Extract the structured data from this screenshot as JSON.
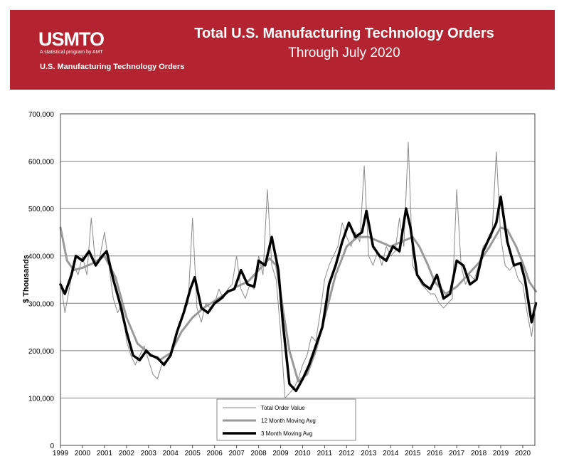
{
  "header": {
    "logo_text": "USMTO",
    "tagline": "A statistical program by AMT",
    "subtag": "U.S. Manufacturing Technology Orders",
    "title": "Total U.S. Manufacturing Technology Orders",
    "subtitle": "Through July 2020"
  },
  "colors": {
    "banner": "#b32430",
    "total": "#8a8a8a",
    "ma12": "#9a9a9a",
    "ma3": "#000000"
  },
  "chart_data": {
    "type": "line",
    "title": "Total U.S. Manufacturing Technology Orders",
    "subtitle": "Through July 2020",
    "xlabel": "",
    "ylabel": "$ Thousands",
    "ylim": [
      0,
      700000
    ],
    "grid": true,
    "legend_position": "bottom-center",
    "x_ticks": [
      "1999",
      "2000",
      "2001",
      "2002",
      "2003",
      "2004",
      "2005",
      "2006",
      "2007",
      "2008",
      "2009",
      "2010",
      "2011",
      "2012",
      "2013",
      "2014",
      "2015",
      "2016",
      "2017",
      "2018",
      "2019",
      "2020"
    ],
    "y_ticks": [
      "0",
      "100,000",
      "200,000",
      "300,000",
      "400,000",
      "500,000",
      "600,000",
      "700,000"
    ],
    "series": [
      {
        "name": "Total Order Value",
        "style": "thin",
        "points": [
          [
            1999.0,
            350000
          ],
          [
            1999.2,
            280000
          ],
          [
            1999.4,
            330000
          ],
          [
            1999.6,
            380000
          ],
          [
            1999.8,
            360000
          ],
          [
            2000.0,
            400000
          ],
          [
            2000.2,
            360000
          ],
          [
            2000.4,
            480000
          ],
          [
            2000.6,
            380000
          ],
          [
            2000.8,
            400000
          ],
          [
            2001.0,
            450000
          ],
          [
            2001.2,
            380000
          ],
          [
            2001.4,
            310000
          ],
          [
            2001.6,
            280000
          ],
          [
            2001.8,
            300000
          ],
          [
            2002.0,
            220000
          ],
          [
            2002.2,
            190000
          ],
          [
            2002.4,
            170000
          ],
          [
            2002.6,
            190000
          ],
          [
            2002.8,
            210000
          ],
          [
            2003.0,
            180000
          ],
          [
            2003.2,
            150000
          ],
          [
            2003.4,
            140000
          ],
          [
            2003.6,
            170000
          ],
          [
            2003.8,
            180000
          ],
          [
            2004.0,
            190000
          ],
          [
            2004.2,
            230000
          ],
          [
            2004.4,
            260000
          ],
          [
            2004.6,
            280000
          ],
          [
            2004.8,
            300000
          ],
          [
            2005.0,
            480000
          ],
          [
            2005.2,
            290000
          ],
          [
            2005.4,
            260000
          ],
          [
            2005.6,
            300000
          ],
          [
            2005.8,
            290000
          ],
          [
            2006.0,
            300000
          ],
          [
            2006.2,
            330000
          ],
          [
            2006.4,
            310000
          ],
          [
            2006.6,
            330000
          ],
          [
            2006.8,
            340000
          ],
          [
            2007.0,
            400000
          ],
          [
            2007.2,
            330000
          ],
          [
            2007.4,
            310000
          ],
          [
            2007.6,
            340000
          ],
          [
            2007.8,
            330000
          ],
          [
            2008.0,
            400000
          ],
          [
            2008.2,
            360000
          ],
          [
            2008.4,
            540000
          ],
          [
            2008.6,
            380000
          ],
          [
            2008.8,
            350000
          ],
          [
            2009.0,
            240000
          ],
          [
            2009.2,
            100000
          ],
          [
            2009.4,
            110000
          ],
          [
            2009.6,
            120000
          ],
          [
            2009.8,
            140000
          ],
          [
            2010.0,
            170000
          ],
          [
            2010.2,
            190000
          ],
          [
            2010.4,
            230000
          ],
          [
            2010.6,
            220000
          ],
          [
            2010.8,
            280000
          ],
          [
            2011.0,
            350000
          ],
          [
            2011.2,
            380000
          ],
          [
            2011.4,
            400000
          ],
          [
            2011.6,
            420000
          ],
          [
            2011.8,
            470000
          ],
          [
            2012.0,
            440000
          ],
          [
            2012.2,
            420000
          ],
          [
            2012.4,
            450000
          ],
          [
            2012.6,
            430000
          ],
          [
            2012.8,
            590000
          ],
          [
            2013.0,
            400000
          ],
          [
            2013.2,
            380000
          ],
          [
            2013.4,
            410000
          ],
          [
            2013.6,
            380000
          ],
          [
            2013.8,
            420000
          ],
          [
            2014.0,
            400000
          ],
          [
            2014.2,
            410000
          ],
          [
            2014.4,
            480000
          ],
          [
            2014.6,
            420000
          ],
          [
            2014.8,
            640000
          ],
          [
            2015.0,
            380000
          ],
          [
            2015.2,
            360000
          ],
          [
            2015.4,
            340000
          ],
          [
            2015.6,
            330000
          ],
          [
            2015.8,
            320000
          ],
          [
            2016.0,
            320000
          ],
          [
            2016.2,
            300000
          ],
          [
            2016.4,
            290000
          ],
          [
            2016.6,
            300000
          ],
          [
            2016.8,
            310000
          ],
          [
            2017.0,
            540000
          ],
          [
            2017.2,
            380000
          ],
          [
            2017.4,
            340000
          ],
          [
            2017.6,
            360000
          ],
          [
            2017.8,
            350000
          ],
          [
            2018.0,
            380000
          ],
          [
            2018.2,
            420000
          ],
          [
            2018.4,
            430000
          ],
          [
            2018.6,
            440000
          ],
          [
            2018.8,
            620000
          ],
          [
            2019.0,
            440000
          ],
          [
            2019.2,
            380000
          ],
          [
            2019.4,
            370000
          ],
          [
            2019.6,
            380000
          ],
          [
            2019.8,
            350000
          ],
          [
            2020.0,
            340000
          ],
          [
            2020.2,
            280000
          ],
          [
            2020.4,
            230000
          ],
          [
            2020.6,
            300000
          ]
        ]
      },
      {
        "name": "12 Month Moving Avg",
        "style": "medium",
        "points": [
          [
            1999.0,
            460000
          ],
          [
            1999.3,
            390000
          ],
          [
            1999.6,
            370000
          ],
          [
            2000.0,
            375000
          ],
          [
            2000.5,
            385000
          ],
          [
            2001.0,
            400000
          ],
          [
            2001.5,
            355000
          ],
          [
            2002.0,
            270000
          ],
          [
            2002.5,
            215000
          ],
          [
            2003.0,
            195000
          ],
          [
            2003.5,
            180000
          ],
          [
            2004.0,
            195000
          ],
          [
            2004.5,
            240000
          ],
          [
            2005.0,
            270000
          ],
          [
            2005.5,
            290000
          ],
          [
            2006.0,
            305000
          ],
          [
            2006.5,
            320000
          ],
          [
            2007.0,
            335000
          ],
          [
            2007.5,
            345000
          ],
          [
            2008.0,
            370000
          ],
          [
            2008.5,
            395000
          ],
          [
            2008.8,
            380000
          ],
          [
            2009.0,
            320000
          ],
          [
            2009.4,
            200000
          ],
          [
            2009.8,
            135000
          ],
          [
            2010.2,
            150000
          ],
          [
            2010.6,
            200000
          ],
          [
            2011.0,
            270000
          ],
          [
            2011.5,
            360000
          ],
          [
            2012.0,
            420000
          ],
          [
            2012.5,
            440000
          ],
          [
            2013.0,
            440000
          ],
          [
            2013.5,
            430000
          ],
          [
            2014.0,
            420000
          ],
          [
            2014.5,
            430000
          ],
          [
            2015.0,
            440000
          ],
          [
            2015.3,
            420000
          ],
          [
            2015.7,
            380000
          ],
          [
            2016.0,
            345000
          ],
          [
            2016.5,
            320000
          ],
          [
            2017.0,
            335000
          ],
          [
            2017.5,
            360000
          ],
          [
            2018.0,
            385000
          ],
          [
            2018.5,
            420000
          ],
          [
            2019.0,
            460000
          ],
          [
            2019.3,
            455000
          ],
          [
            2019.7,
            420000
          ],
          [
            2020.0,
            385000
          ],
          [
            2020.3,
            345000
          ],
          [
            2020.6,
            325000
          ]
        ]
      },
      {
        "name": "3 Month Moving Avg",
        "style": "thick",
        "points": [
          [
            1999.0,
            340000
          ],
          [
            1999.2,
            320000
          ],
          [
            1999.5,
            360000
          ],
          [
            1999.7,
            400000
          ],
          [
            2000.0,
            390000
          ],
          [
            2000.3,
            410000
          ],
          [
            2000.6,
            380000
          ],
          [
            2000.9,
            400000
          ],
          [
            2001.1,
            410000
          ],
          [
            2001.4,
            350000
          ],
          [
            2001.7,
            300000
          ],
          [
            2002.0,
            240000
          ],
          [
            2002.3,
            190000
          ],
          [
            2002.6,
            180000
          ],
          [
            2002.9,
            200000
          ],
          [
            2003.1,
            190000
          ],
          [
            2003.4,
            185000
          ],
          [
            2003.7,
            170000
          ],
          [
            2004.0,
            190000
          ],
          [
            2004.3,
            240000
          ],
          [
            2004.6,
            280000
          ],
          [
            2004.9,
            330000
          ],
          [
            2005.1,
            355000
          ],
          [
            2005.4,
            290000
          ],
          [
            2005.7,
            280000
          ],
          [
            2006.0,
            300000
          ],
          [
            2006.3,
            310000
          ],
          [
            2006.6,
            325000
          ],
          [
            2006.9,
            330000
          ],
          [
            2007.2,
            370000
          ],
          [
            2007.5,
            340000
          ],
          [
            2007.8,
            335000
          ],
          [
            2008.0,
            390000
          ],
          [
            2008.3,
            380000
          ],
          [
            2008.6,
            440000
          ],
          [
            2008.9,
            370000
          ],
          [
            2009.1,
            260000
          ],
          [
            2009.4,
            130000
          ],
          [
            2009.7,
            115000
          ],
          [
            2010.0,
            140000
          ],
          [
            2010.3,
            170000
          ],
          [
            2010.6,
            210000
          ],
          [
            2010.9,
            250000
          ],
          [
            2011.2,
            340000
          ],
          [
            2011.5,
            380000
          ],
          [
            2011.8,
            430000
          ],
          [
            2012.1,
            470000
          ],
          [
            2012.4,
            440000
          ],
          [
            2012.7,
            450000
          ],
          [
            2012.9,
            495000
          ],
          [
            2013.2,
            420000
          ],
          [
            2013.5,
            400000
          ],
          [
            2013.8,
            390000
          ],
          [
            2014.1,
            420000
          ],
          [
            2014.4,
            410000
          ],
          [
            2014.7,
            500000
          ],
          [
            2014.9,
            460000
          ],
          [
            2015.2,
            360000
          ],
          [
            2015.5,
            340000
          ],
          [
            2015.8,
            330000
          ],
          [
            2016.1,
            360000
          ],
          [
            2016.4,
            310000
          ],
          [
            2016.7,
            320000
          ],
          [
            2017.0,
            390000
          ],
          [
            2017.3,
            380000
          ],
          [
            2017.6,
            340000
          ],
          [
            2017.9,
            350000
          ],
          [
            2018.2,
            410000
          ],
          [
            2018.5,
            440000
          ],
          [
            2018.8,
            470000
          ],
          [
            2019.0,
            525000
          ],
          [
            2019.3,
            430000
          ],
          [
            2019.6,
            380000
          ],
          [
            2019.9,
            385000
          ],
          [
            2020.1,
            350000
          ],
          [
            2020.4,
            260000
          ],
          [
            2020.6,
            300000
          ]
        ]
      }
    ]
  }
}
